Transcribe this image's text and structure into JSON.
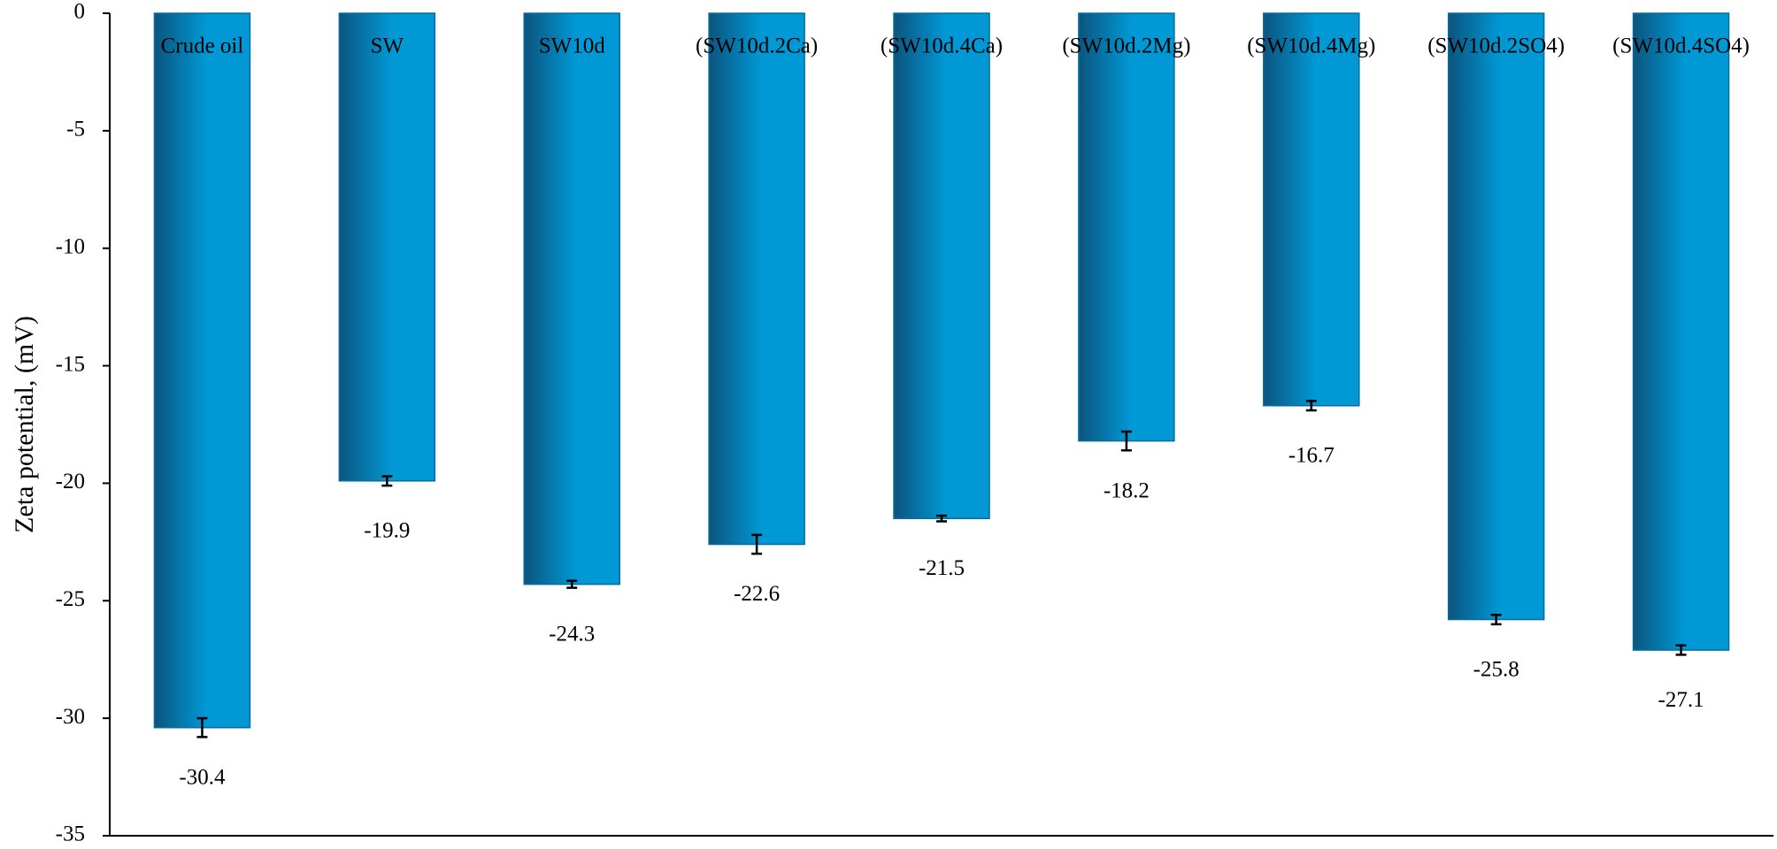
{
  "chart_data": {
    "type": "bar",
    "y_label": "Zeta potential, (mV)",
    "categories": [
      "Crude oil",
      "SW",
      "SW10d",
      "(SW10d.2Ca)",
      "(SW10d.4Ca)",
      "(SW10d.2Mg)",
      "(SW10d.4Mg)",
      "(SW10d.2SO4)",
      "(SW10d.4SO4)"
    ],
    "values": [
      -30.4,
      -19.9,
      -24.3,
      -22.6,
      -21.5,
      -18.2,
      -16.7,
      -25.8,
      -27.1
    ],
    "errors": [
      0.4,
      0.2,
      0.15,
      0.4,
      0.12,
      0.4,
      0.2,
      0.2,
      0.2
    ],
    "color": "#0099d6",
    "ylim": [
      -35,
      0
    ],
    "yticks": [
      0,
      -5,
      -10,
      -15,
      -20,
      -25,
      -30,
      -35
    ]
  }
}
